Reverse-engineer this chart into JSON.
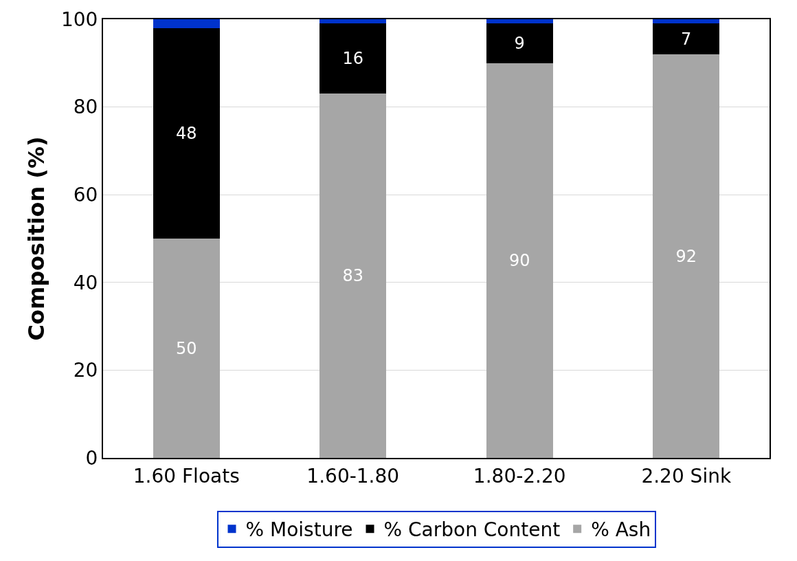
{
  "chart_data": {
    "type": "bar",
    "stacked": true,
    "ylabel": "Composition (%)",
    "categories": [
      "1.60 Floats",
      "1.60-1.80",
      "1.80-2.20",
      "2.20 Sink"
    ],
    "series": [
      {
        "name": "% Ash",
        "color": "#a6a6a6",
        "values": [
          50,
          83,
          90,
          92
        ],
        "value_labels": [
          "50",
          "83",
          "90",
          "92"
        ]
      },
      {
        "name": "% Carbon Content",
        "color": "#000000",
        "values": [
          48,
          16,
          9,
          7
        ],
        "value_labels": [
          "48",
          "16",
          "9",
          "7"
        ]
      },
      {
        "name": "% Moisture",
        "color": "#0033cc",
        "values": [
          2,
          1,
          1,
          1
        ]
      }
    ],
    "ylim": [
      0,
      100
    ],
    "yticks": [
      0,
      20,
      40,
      60,
      80,
      100
    ],
    "grid": "y",
    "legend": "bottom"
  }
}
